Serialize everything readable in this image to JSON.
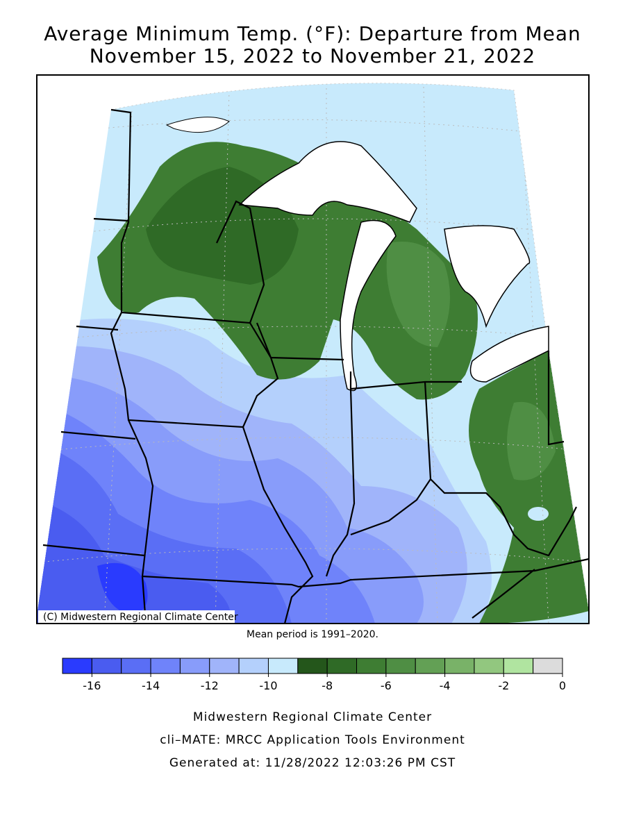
{
  "title": "Average Minimum Temp. (°F): Departure from Mean",
  "subtitle": "November 15, 2022 to November 21, 2022",
  "copyright": "(C) Midwestern Regional Climate Center",
  "mean_period": "Mean period is 1991–2020.",
  "colorbar": {
    "bins": [
      -17,
      -16,
      -15,
      -14,
      -13,
      -12,
      -11,
      -10,
      -9,
      -8,
      -7,
      -6,
      -5,
      -4,
      -3,
      -2,
      -1,
      0
    ],
    "colors": [
      "#2a3bfe",
      "#4a5cf0",
      "#5a6ef5",
      "#6f83fa",
      "#889cfa",
      "#a0b4fa",
      "#b4d0fc",
      "#c8eafc",
      "#24561b",
      "#2f6a26",
      "#3e7d33",
      "#4f8e44",
      "#63a055",
      "#79b268",
      "#92c77f",
      "#b0e4a0",
      "#dcdcdc"
    ],
    "ticks": [
      -16,
      -14,
      -12,
      -10,
      -8,
      -6,
      -4,
      -2,
      0
    ]
  },
  "footer": [
    "Midwestern Regional Climate Center",
    "cli–MATE: MRCC Application Tools Environment",
    "Generated at: 11/28/2022 12:03:26 PM CST"
  ]
}
